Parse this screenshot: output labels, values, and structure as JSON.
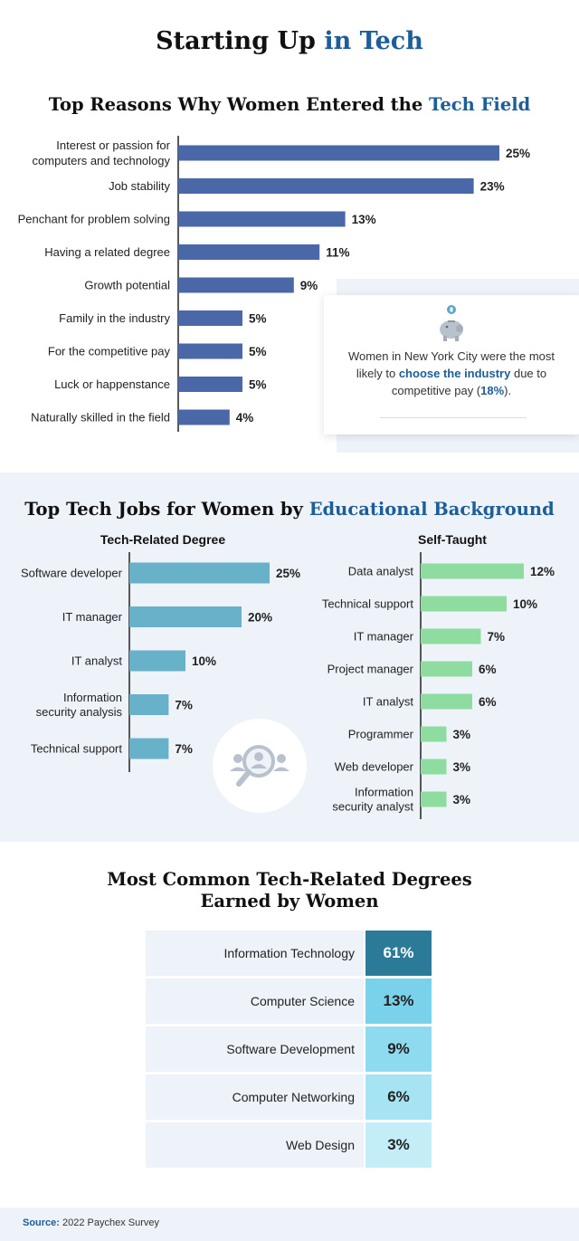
{
  "title": {
    "part1": "Starting Up",
    "part2": "in Tech"
  },
  "colors": {
    "accent": "#1d5e98",
    "reasons_bar": "#4a67a8",
    "degree_bar": "#68b2c9",
    "selftaught_bar": "#8edc9f",
    "panel_bg": "#eef3f9"
  },
  "callout": {
    "icon": "piggy-bank-icon",
    "text_before": "Women in New York City were the most likely to ",
    "text_highlight": "choose the industry",
    "text_middle": " due to competitive pay (",
    "text_value": "18%",
    "text_after": ")."
  },
  "chart_data": [
    {
      "type": "bar",
      "orientation": "horizontal",
      "title_part1": "Top Reasons Why Women Entered the",
      "title_part2": "Tech Field",
      "categories": [
        [
          "Interest or passion for",
          "computers and technology"
        ],
        [
          "Job stability"
        ],
        [
          "Penchant for problem solving"
        ],
        [
          "Having a related degree"
        ],
        [
          "Growth potential"
        ],
        [
          "Family in the industry"
        ],
        [
          "For the competitive pay"
        ],
        [
          "Luck or happenstance"
        ],
        [
          "Naturally skilled in the field"
        ]
      ],
      "values": [
        25,
        23,
        13,
        11,
        9,
        5,
        5,
        5,
        4
      ],
      "value_labels": [
        "25%",
        "23%",
        "13%",
        "11%",
        "9%",
        "5%",
        "5%",
        "5%",
        "4%"
      ],
      "unit": "%"
    },
    {
      "type": "bar",
      "orientation": "horizontal",
      "title": "Tech-Related Degree",
      "categories": [
        [
          "Software developer"
        ],
        [
          "IT manager"
        ],
        [
          "IT analyst"
        ],
        [
          "Information",
          "security analysis"
        ],
        [
          "Technical support"
        ]
      ],
      "values": [
        25,
        20,
        10,
        7,
        7
      ],
      "value_labels": [
        "25%",
        "20%",
        "10%",
        "7%",
        "7%"
      ],
      "unit": "%"
    },
    {
      "type": "bar",
      "orientation": "horizontal",
      "title": "Self-Taught",
      "categories": [
        [
          "Data analyst"
        ],
        [
          "Technical support"
        ],
        [
          "IT manager"
        ],
        [
          "Project manager"
        ],
        [
          "IT analyst"
        ],
        [
          "Programmer"
        ],
        [
          "Web developer"
        ],
        [
          "Information",
          "security analyst"
        ]
      ],
      "values": [
        12,
        10,
        7,
        6,
        6,
        3,
        3,
        3
      ],
      "value_labels": [
        "12%",
        "10%",
        "7%",
        "6%",
        "6%",
        "3%",
        "3%",
        "3%"
      ],
      "unit": "%"
    },
    {
      "type": "table",
      "title_line1": "Most Common Tech-Related Degrees",
      "title_line2": "Earned by Women",
      "rows": [
        {
          "label": "Information Technology",
          "value": 61,
          "display": "61%",
          "color": "#2a7a98",
          "text_color": "#ffffff"
        },
        {
          "label": "Computer Science",
          "value": 13,
          "display": "13%",
          "color": "#79d2ea",
          "text_color": "#222222"
        },
        {
          "label": "Software Development",
          "value": 9,
          "display": "9%",
          "color": "#8edaef",
          "text_color": "#222222"
        },
        {
          "label": "Computer Networking",
          "value": 6,
          "display": "6%",
          "color": "#a7e4f3",
          "text_color": "#222222"
        },
        {
          "label": "Web Design",
          "value": 3,
          "display": "3%",
          "color": "#c3eef8",
          "text_color": "#222222"
        }
      ]
    }
  ],
  "section2": {
    "title_part1": "Top Tech Jobs for Women by",
    "title_part2": "Educational Background",
    "icon": "people-search-icon"
  },
  "footer": {
    "source_label": "Source:",
    "source_text": "2022 Paychex Survey"
  }
}
